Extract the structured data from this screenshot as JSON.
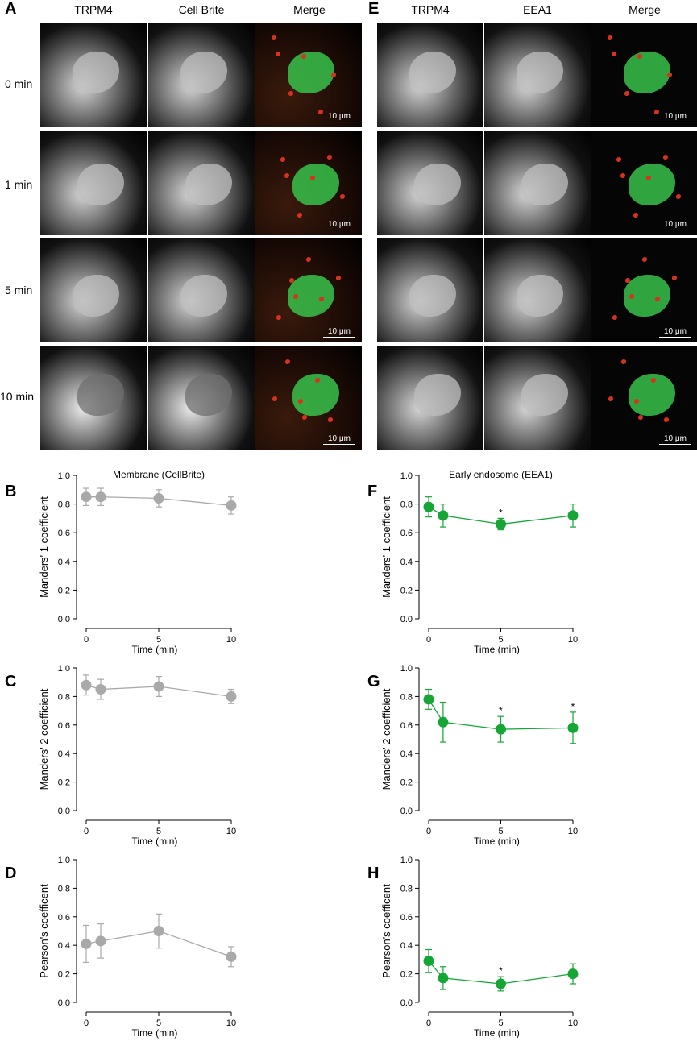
{
  "figure": {
    "left_panel": {
      "letter": "A",
      "headers": [
        "TRPM4",
        "Cell Brite",
        "Merge"
      ],
      "rows": [
        "0 min",
        "1 min",
        "5 min",
        "10 min"
      ],
      "scale_label": "10 μm"
    },
    "right_panel": {
      "letter": "E",
      "headers": [
        "TRPM4",
        "EEA1",
        "Merge"
      ],
      "rows": [
        "",
        "",
        "",
        ""
      ],
      "scale_label": "10 μm"
    }
  },
  "colors": {
    "gray_series": "#a9a9a9",
    "green_series": "#15a636",
    "micro_green": "#38c24a",
    "micro_red": "#d8321e"
  },
  "chart_data": [
    {
      "id": "B",
      "type": "line",
      "title": "Membrane (CellBrite)",
      "xlabel": "Time (min)",
      "ylabel": "Manders' 1 coefficient",
      "xlim": [
        0,
        10
      ],
      "ylim": [
        0,
        1.0
      ],
      "xticks": [
        0,
        5,
        10
      ],
      "yticks": [
        0.0,
        0.2,
        0.4,
        0.6,
        0.8,
        1.0
      ],
      "ytick_labels": [
        "0.0",
        "0.2",
        "0.4",
        "0.6",
        "0.8",
        "1.0"
      ],
      "color": "#a9a9a9",
      "x": [
        0,
        1,
        5,
        10
      ],
      "y": [
        0.85,
        0.85,
        0.84,
        0.79
      ],
      "err": [
        0.06,
        0.06,
        0.06,
        0.06
      ],
      "stars": [
        "",
        "",
        "",
        ""
      ]
    },
    {
      "id": "C",
      "type": "line",
      "title": "",
      "xlabel": "Time (min)",
      "ylabel": "Manders' 2 coefficient",
      "xlim": [
        0,
        10
      ],
      "ylim": [
        0,
        1.0
      ],
      "xticks": [
        0,
        5,
        10
      ],
      "yticks": [
        0.0,
        0.2,
        0.4,
        0.6,
        0.8,
        1.0
      ],
      "ytick_labels": [
        "0.0",
        "0.2",
        "0.4",
        "0.6",
        "0.8",
        "1.0"
      ],
      "color": "#a9a9a9",
      "x": [
        0,
        1,
        5,
        10
      ],
      "y": [
        0.88,
        0.85,
        0.87,
        0.8
      ],
      "err": [
        0.07,
        0.07,
        0.07,
        0.05
      ],
      "stars": [
        "",
        "",
        "",
        ""
      ]
    },
    {
      "id": "D",
      "type": "line",
      "title": "",
      "xlabel": "Time (min)",
      "ylabel": "Pearson's coefficent",
      "xlim": [
        0,
        10
      ],
      "ylim": [
        0,
        1.0
      ],
      "xticks": [
        0,
        5,
        10
      ],
      "yticks": [
        0.0,
        0.2,
        0.4,
        0.6,
        0.8,
        1.0
      ],
      "ytick_labels": [
        "0.0",
        "0.2",
        "0.4",
        "0.6",
        "0.8",
        "1.0"
      ],
      "color": "#a9a9a9",
      "x": [
        0,
        1,
        5,
        10
      ],
      "y": [
        0.41,
        0.43,
        0.5,
        0.32
      ],
      "err": [
        0.13,
        0.12,
        0.12,
        0.07
      ],
      "stars": [
        "",
        "",
        "",
        ""
      ]
    },
    {
      "id": "F",
      "type": "line",
      "title": "Early endosome (EEA1)",
      "xlabel": "Time (min)",
      "ylabel": "Manders' 1 coefficient",
      "xlim": [
        0,
        10
      ],
      "ylim": [
        0,
        1.0
      ],
      "xticks": [
        0,
        5,
        10
      ],
      "yticks": [
        0.0,
        0.2,
        0.4,
        0.6,
        0.8,
        1.0
      ],
      "ytick_labels": [
        "0.0",
        "0.2",
        "0.4",
        "0.6",
        "0.8",
        "1.0"
      ],
      "color": "#15a636",
      "x": [
        0,
        1,
        5,
        10
      ],
      "y": [
        0.78,
        0.72,
        0.66,
        0.72
      ],
      "err": [
        0.07,
        0.08,
        0.04,
        0.08
      ],
      "stars": [
        "",
        "",
        "*",
        ""
      ]
    },
    {
      "id": "G",
      "type": "line",
      "title": "",
      "xlabel": "Time (min)",
      "ylabel": "Manders' 2 coefficient",
      "xlim": [
        0,
        10
      ],
      "ylim": [
        0,
        1.0
      ],
      "xticks": [
        0,
        5,
        10
      ],
      "yticks": [
        0.0,
        0.2,
        0.4,
        0.6,
        0.8,
        1.0
      ],
      "ytick_labels": [
        "0.0",
        "0.2",
        "0.4",
        "0.6",
        "0.8",
        "1.0"
      ],
      "color": "#15a636",
      "x": [
        0,
        1,
        5,
        10
      ],
      "y": [
        0.78,
        0.62,
        0.57,
        0.58
      ],
      "err": [
        0.07,
        0.14,
        0.09,
        0.11
      ],
      "stars": [
        "",
        "",
        "*",
        "*"
      ]
    },
    {
      "id": "H",
      "type": "line",
      "title": "",
      "xlabel": "Time (min)",
      "ylabel": "Pearson's coefficent",
      "xlim": [
        0,
        10
      ],
      "ylim": [
        0,
        1.0
      ],
      "xticks": [
        0,
        5,
        10
      ],
      "yticks": [
        0.0,
        0.2,
        0.4,
        0.6,
        0.8,
        1.0
      ],
      "ytick_labels": [
        "0.0",
        "0.2",
        "0.4",
        "0.6",
        "0.8",
        "1.0"
      ],
      "color": "#15a636",
      "x": [
        0,
        1,
        5,
        10
      ],
      "y": [
        0.29,
        0.17,
        0.13,
        0.2
      ],
      "err": [
        0.08,
        0.08,
        0.05,
        0.07
      ],
      "stars": [
        "",
        "",
        "*",
        ""
      ]
    }
  ]
}
